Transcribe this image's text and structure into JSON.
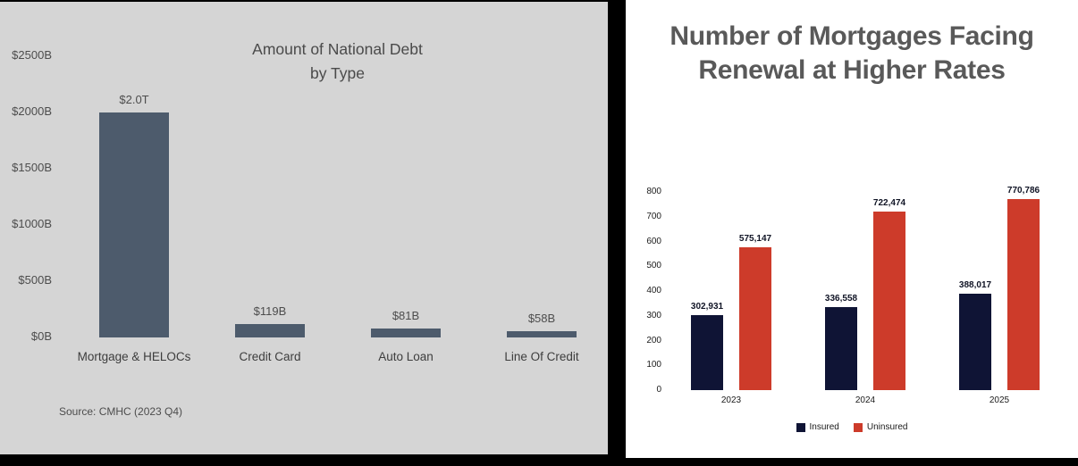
{
  "chart_data": [
    {
      "type": "bar",
      "title": "Amount of National Debt by Type",
      "source": "Source: CMHC (2023 Q4)",
      "categories": [
        "Mortgage & HELOCs",
        "Credit Card",
        "Auto Loan",
        "Line Of Credit"
      ],
      "values": [
        2000,
        119,
        81,
        58
      ],
      "value_labels": [
        "$2.0T",
        "$119B",
        "$81B",
        "$58B"
      ],
      "y_ticks": [
        "$2500B",
        "$2000B",
        "$1500B",
        "$1000B",
        "$500B",
        "$0B"
      ],
      "y_tick_values": [
        2500,
        2000,
        1500,
        1000,
        500,
        0
      ],
      "ylim": [
        0,
        2500
      ],
      "xlabel": "",
      "ylabel": "",
      "grid": false,
      "legend_position": "none",
      "bar_color": "#4d5b6c",
      "background": "#d5d5d5"
    },
    {
      "type": "bar",
      "title": "Number of Mortgages Facing Renewal at Higher Rates",
      "categories": [
        "2023",
        "2024",
        "2025"
      ],
      "series": [
        {
          "name": "Insured",
          "color": "#0f1435",
          "values": [
            302931,
            336558,
            388017
          ],
          "value_labels": [
            "302,931",
            "336,558",
            "388,017"
          ]
        },
        {
          "name": "Uninsured",
          "color": "#cd3b2a",
          "values": [
            575147,
            722474,
            770786
          ],
          "value_labels": [
            "575,147",
            "722,474",
            "770,786"
          ]
        }
      ],
      "y_ticks": [
        0,
        100,
        200,
        300,
        400,
        500,
        600,
        700,
        800
      ],
      "y_axis_unit": "thousands",
      "ylim": [
        0,
        800
      ],
      "xlabel": "",
      "ylabel": "",
      "grid": false,
      "legend": [
        "Insured",
        "Uninsured"
      ],
      "legend_position": "bottom",
      "background": "#ffffff"
    }
  ]
}
